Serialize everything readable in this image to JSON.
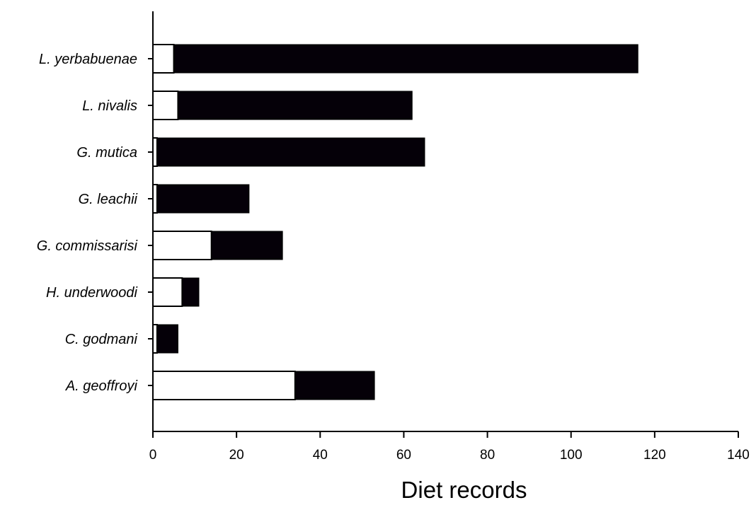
{
  "chart_data": {
    "type": "bar",
    "orientation": "horizontal",
    "stacked": true,
    "title": "",
    "xlabel": "Diet records",
    "ylabel": "",
    "xlim": [
      0,
      140
    ],
    "x_ticks": [
      0,
      20,
      40,
      60,
      80,
      100,
      120,
      140
    ],
    "grid": false,
    "legend": "none",
    "categories": [
      "L. yerbabuenae",
      "L. nivalis",
      "G. mutica",
      "G. leachii",
      "G. commissarisi",
      "H. underwoodi",
      "C. godmani",
      "A. geoffroyi"
    ],
    "series": [
      {
        "values": [
          5,
          6,
          1,
          1,
          14,
          7,
          1,
          34
        ],
        "color": "#ffffff"
      },
      {
        "values": [
          111,
          56,
          64,
          22,
          17,
          4,
          5,
          19
        ],
        "color": "#050008"
      }
    ]
  }
}
